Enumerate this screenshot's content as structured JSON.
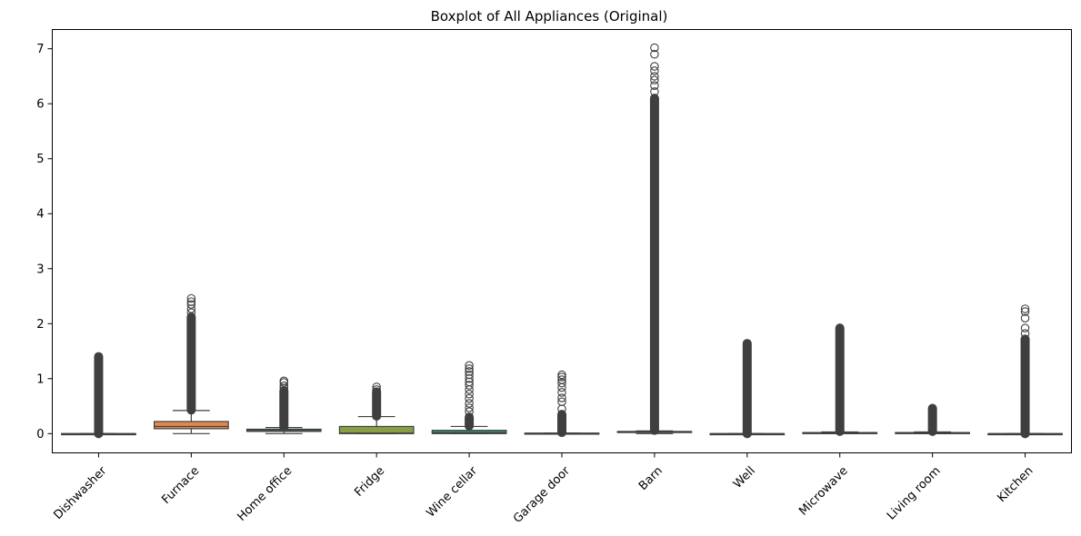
{
  "chart_data": {
    "type": "box",
    "title": "Boxplot of All Appliances (Original)",
    "xlabel": "",
    "ylabel": "",
    "ylim": [
      -0.35,
      7.35
    ],
    "yticks": [
      0,
      1,
      2,
      3,
      4,
      5,
      6,
      7
    ],
    "grid": false,
    "legend": "none",
    "categories": [
      "Dishwasher",
      "Furnace",
      "Home office",
      "Fridge",
      "Wine cellar",
      "Garage door",
      "Barn",
      "Well",
      "Microwave",
      "Living room",
      "Kitchen"
    ],
    "boxes": [
      {
        "name": "Dishwasher",
        "color": "#3b75af",
        "whislo": 0.0,
        "q1": 0.0,
        "median": 0.0,
        "q3": 0.0,
        "whishi": 0.0,
        "outliers_min": 0.0,
        "outliers_max": 1.4,
        "sparse_outliers": []
      },
      {
        "name": "Furnace",
        "color": "#e1894f",
        "whislo": 0.0,
        "q1": 0.09,
        "median": 0.13,
        "q3": 0.22,
        "whishi": 0.42,
        "outliers_min": 0.43,
        "outliers_max": 2.12,
        "sparse_outliers": [
          2.2,
          2.27,
          2.35,
          2.4,
          2.46
        ]
      },
      {
        "name": "Home office",
        "color": "#55a868",
        "whislo": 0.0,
        "q1": 0.04,
        "median": 0.06,
        "q3": 0.08,
        "whishi": 0.11,
        "outliers_min": 0.12,
        "outliers_max": 0.78,
        "sparse_outliers": [
          0.83,
          0.87,
          0.93,
          0.96
        ]
      },
      {
        "name": "Fridge",
        "color": "#8a9e44",
        "whislo": 0.0,
        "q1": 0.0,
        "median": 0.01,
        "q3": 0.13,
        "whishi": 0.31,
        "outliers_min": 0.32,
        "outliers_max": 0.76,
        "sparse_outliers": [
          0.8,
          0.85
        ]
      },
      {
        "name": "Wine cellar",
        "color": "#3d9a6b",
        "whislo": 0.0,
        "q1": 0.0,
        "median": 0.02,
        "q3": 0.06,
        "whishi": 0.13,
        "outliers_min": 0.14,
        "outliers_max": 0.3,
        "sparse_outliers": [
          0.4,
          0.47,
          0.55,
          0.64,
          0.72,
          0.8,
          0.88,
          0.94,
          1.0,
          1.07,
          1.13,
          1.18,
          1.24
        ]
      },
      {
        "name": "Garage door",
        "color": "#5aa0a2",
        "whislo": 0.0,
        "q1": 0.0,
        "median": 0.0,
        "q3": 0.01,
        "whishi": 0.01,
        "outliers_min": 0.02,
        "outliers_max": 0.35,
        "sparse_outliers": [
          0.45,
          0.58,
          0.65,
          0.75,
          0.84,
          0.92,
          0.98,
          1.03,
          1.07
        ]
      },
      {
        "name": "Barn",
        "color": "#4e8fc3",
        "whislo": 0.0,
        "q1": 0.02,
        "median": 0.03,
        "q3": 0.04,
        "whishi": 0.05,
        "outliers_min": 0.06,
        "outliers_max": 6.1,
        "sparse_outliers": [
          6.22,
          6.33,
          6.43,
          6.5,
          6.6,
          6.68,
          6.9,
          7.02
        ]
      },
      {
        "name": "Well",
        "color": "#6a7cc6",
        "whislo": 0.0,
        "q1": 0.0,
        "median": 0.0,
        "q3": 0.0,
        "whishi": 0.0,
        "outliers_min": 0.0,
        "outliers_max": 1.64,
        "sparse_outliers": []
      },
      {
        "name": "Microwave",
        "color": "#8e78c0",
        "whislo": 0.0,
        "q1": 0.0,
        "median": 0.01,
        "q3": 0.02,
        "whishi": 0.03,
        "outliers_min": 0.04,
        "outliers_max": 1.92,
        "sparse_outliers": []
      },
      {
        "name": "Living room",
        "color": "#b06fb6",
        "whislo": 0.0,
        "q1": 0.0,
        "median": 0.01,
        "q3": 0.02,
        "whishi": 0.03,
        "outliers_min": 0.04,
        "outliers_max": 0.46,
        "sparse_outliers": []
      },
      {
        "name": "Kitchen",
        "color": "#c66fa9",
        "whislo": 0.0,
        "q1": 0.0,
        "median": 0.0,
        "q3": 0.0,
        "whishi": 0.0,
        "outliers_min": 0.0,
        "outliers_max": 1.72,
        "sparse_outliers": [
          1.82,
          1.92,
          2.1,
          2.22,
          2.27
        ]
      }
    ]
  }
}
